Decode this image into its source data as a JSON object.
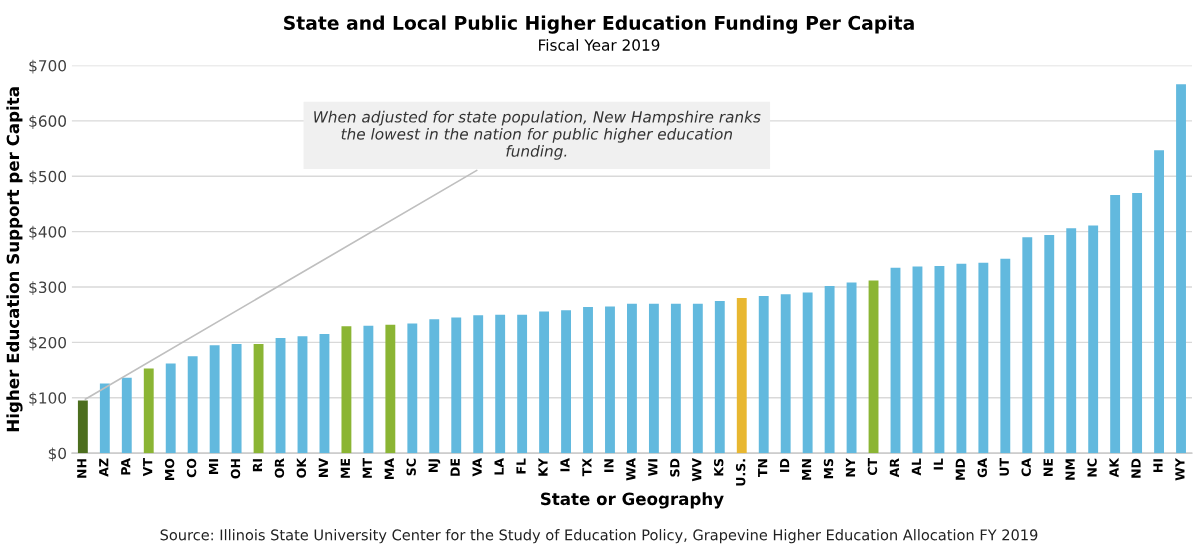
{
  "chart_data": {
    "type": "bar",
    "title": "State and Local Public Higher Education Funding Per Capita",
    "subtitle": "Fiscal Year 2019",
    "xlabel": "State or Geography",
    "ylabel": "Higher Education Support per Capita",
    "categories": [
      "NH",
      "AZ",
      "PA",
      "VT",
      "MO",
      "CO",
      "MI",
      "OH",
      "RI",
      "OR",
      "OK",
      "NV",
      "ME",
      "MT",
      "MA",
      "SC",
      "NJ",
      "DE",
      "VA",
      "LA",
      "FL",
      "KY",
      "IA",
      "TX",
      "IN",
      "WA",
      "WI",
      "SD",
      "WV",
      "KS",
      "U.S.",
      "TN",
      "ID",
      "MN",
      "MS",
      "NY",
      "CT",
      "AR",
      "AL",
      "IL",
      "MD",
      "GA",
      "UT",
      "CA",
      "NE",
      "NM",
      "NC",
      "AK",
      "ND",
      "HI",
      "WY"
    ],
    "values": [
      95,
      126,
      136,
      153,
      162,
      175,
      195,
      197,
      197,
      208,
      211,
      215,
      229,
      230,
      232,
      234,
      242,
      245,
      249,
      250,
      250,
      256,
      258,
      264,
      265,
      270,
      270,
      270,
      270,
      275,
      280,
      284,
      287,
      290,
      302,
      308,
      312,
      335,
      337,
      338,
      342,
      344,
      351,
      390,
      394,
      406,
      411,
      466,
      470,
      547,
      666
    ],
    "colors": [
      "#4c6e1e",
      "#62b9de",
      "#62b9de",
      "#8bb534",
      "#62b9de",
      "#62b9de",
      "#62b9de",
      "#62b9de",
      "#8bb534",
      "#62b9de",
      "#62b9de",
      "#62b9de",
      "#8bb534",
      "#62b9de",
      "#8bb534",
      "#62b9de",
      "#62b9de",
      "#62b9de",
      "#62b9de",
      "#62b9de",
      "#62b9de",
      "#62b9de",
      "#62b9de",
      "#62b9de",
      "#62b9de",
      "#62b9de",
      "#62b9de",
      "#62b9de",
      "#62b9de",
      "#62b9de",
      "#e8b731",
      "#62b9de",
      "#62b9de",
      "#62b9de",
      "#62b9de",
      "#62b9de",
      "#8bb534",
      "#62b9de",
      "#62b9de",
      "#62b9de",
      "#62b9de",
      "#62b9de",
      "#62b9de",
      "#62b9de",
      "#62b9de",
      "#62b9de",
      "#62b9de",
      "#62b9de",
      "#62b9de",
      "#62b9de",
      "#62b9de"
    ],
    "ylim": [
      0,
      700
    ],
    "yticks": [
      {
        "value": 0,
        "label": "$0"
      },
      {
        "value": 100,
        "label": "$100"
      },
      {
        "value": 200,
        "label": "$200"
      },
      {
        "value": 300,
        "label": "$300"
      },
      {
        "value": 400,
        "label": "$400"
      },
      {
        "value": 500,
        "label": "$500"
      },
      {
        "value": 600,
        "label": "$600"
      },
      {
        "value": 700,
        "label": "$700"
      }
    ],
    "grid": "y",
    "annotations": [
      {
        "text": "When adjusted for state population, New Hampshire ranks the lowest in the nation for public higher education funding.",
        "x": "NH",
        "y": 95
      },
      "Source: Illinois State University Center for the Study of Education Policy, Grapevine Higher Education Allocation FY 2019"
    ]
  }
}
